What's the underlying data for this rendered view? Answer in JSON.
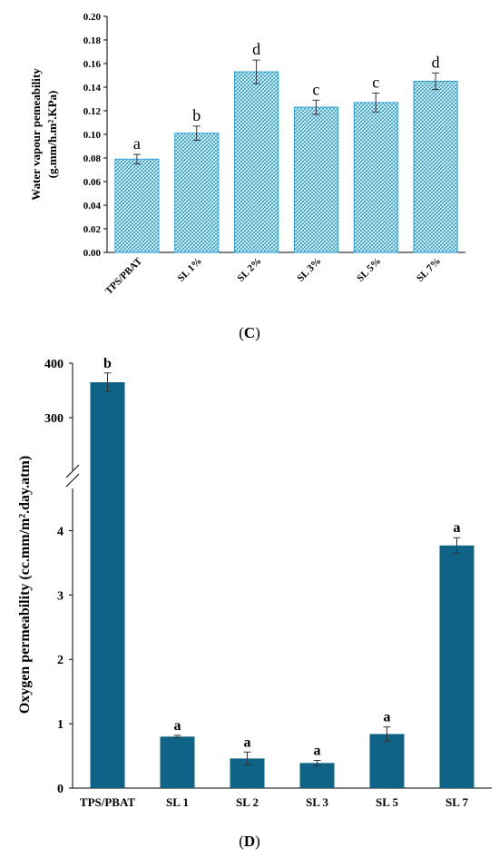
{
  "chart_data": [
    {
      "type": "bar",
      "panel_label": "C",
      "title": "",
      "xlabel": "",
      "ylabel_line1": "Water vapour pemeability",
      "ylabel_line2": "(g.mm/h.m².KPa)",
      "categories": [
        "TPS/PBAT",
        "SL 1%",
        "SL 2%",
        "SL 3%",
        "SL 5%",
        "SL 7%"
      ],
      "values": [
        0.079,
        0.101,
        0.153,
        0.123,
        0.127,
        0.145
      ],
      "errors": [
        0.004,
        0.006,
        0.01,
        0.006,
        0.008,
        0.007
      ],
      "significance": [
        "a",
        "b",
        "d",
        "c",
        "c",
        "d"
      ],
      "ylim": [
        0,
        0.2
      ],
      "yticks": [
        "0.00",
        "0.02",
        "0.04",
        "0.06",
        "0.08",
        "0.10",
        "0.12",
        "0.14",
        "0.16",
        "0.18",
        "0.20"
      ],
      "bar_fill": "hatched",
      "bar_color": "#2a9fd6",
      "grid": false,
      "legend": "none"
    },
    {
      "type": "bar",
      "panel_label": "D",
      "title": "",
      "xlabel": "",
      "ylabel": "Oxygen permeability (cc.mm/m².day.atm)",
      "categories": [
        "TPS/PBAT",
        "SL 1",
        "SL 2",
        "SL 3",
        "SL 5",
        "SL 7"
      ],
      "values": [
        365,
        0.8,
        0.46,
        0.39,
        0.84,
        3.77
      ],
      "errors": [
        17,
        0.02,
        0.1,
        0.04,
        0.11,
        0.12
      ],
      "significance": [
        "b",
        "a",
        "a",
        "a",
        "a",
        "a"
      ],
      "axis_break": true,
      "ylim_lower": [
        0,
        4.5
      ],
      "ylim_upper": [
        250,
        400
      ],
      "yticks": [
        "0",
        "1",
        "2",
        "3",
        "4",
        "300",
        "400"
      ],
      "bar_color": "#0f6386",
      "grid": false,
      "legend": "none"
    }
  ]
}
